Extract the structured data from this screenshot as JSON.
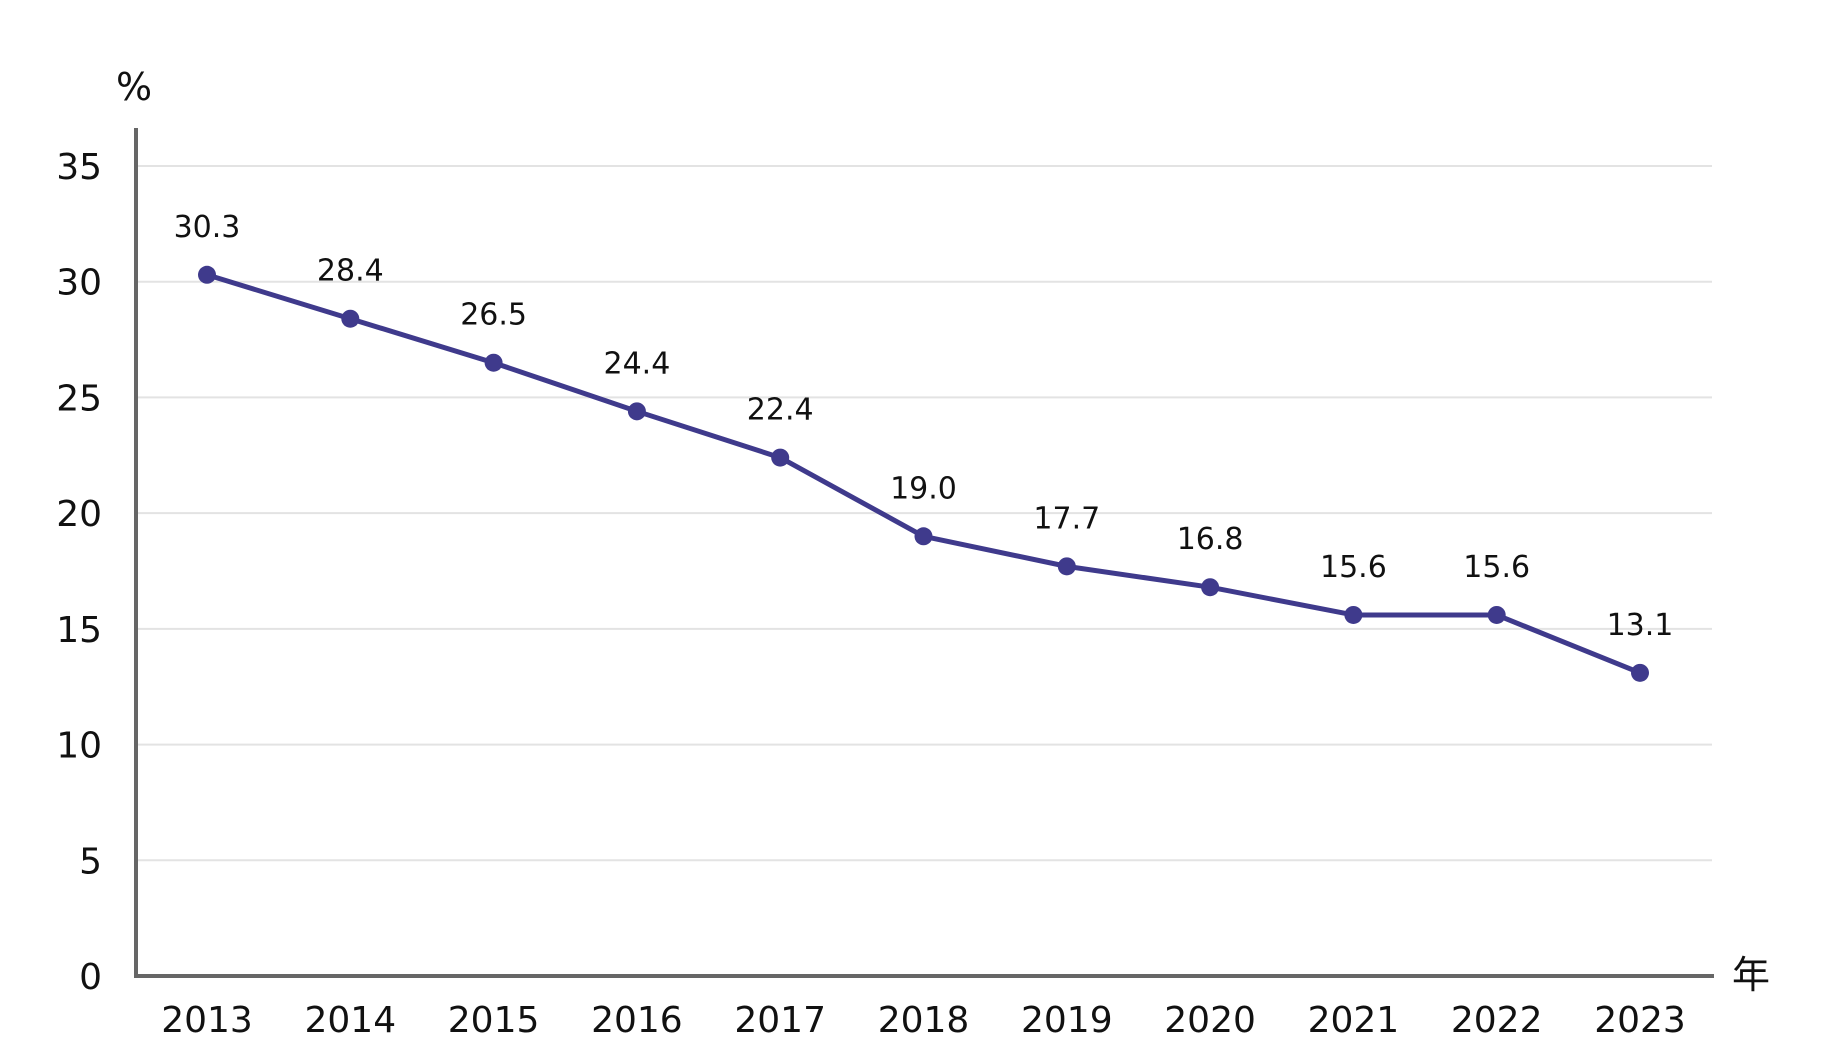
{
  "chart_data": {
    "type": "line",
    "title": "",
    "xlabel": "年",
    "ylabel": "%",
    "categories": [
      "2013",
      "2014",
      "2015",
      "2016",
      "2017",
      "2018",
      "2019",
      "2020",
      "2021",
      "2022",
      "2023"
    ],
    "series": [
      {
        "values": [
          30.3,
          28.4,
          26.5,
          24.4,
          22.4,
          19.0,
          17.7,
          16.8,
          15.6,
          15.6,
          13.1
        ],
        "value_labels": [
          "30.3",
          "28.4",
          "26.5",
          "24.4",
          "22.4",
          "19.0",
          "17.7",
          "16.8",
          "15.6",
          "15.6",
          "13.1"
        ],
        "color": "#3f3a8c"
      }
    ],
    "ylim": [
      0,
      35
    ],
    "yticks": [
      0,
      5,
      10,
      15,
      20,
      25,
      30,
      35
    ],
    "ytick_labels": [
      "0",
      "5",
      "10",
      "15",
      "20",
      "25",
      "30",
      "35"
    ],
    "grid": true,
    "legend": "none",
    "colors": {
      "line": "#3f3a8c",
      "axis": "#666666",
      "grid": "#e3e3e3"
    }
  }
}
